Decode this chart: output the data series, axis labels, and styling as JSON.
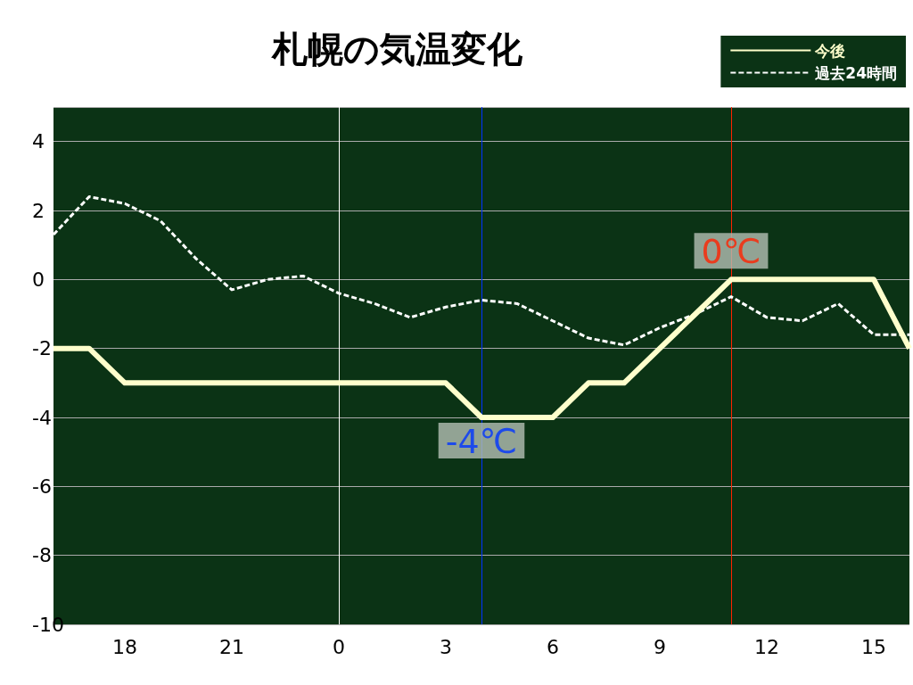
{
  "chart_data": {
    "type": "line",
    "title": "札幌の気温変化",
    "x": [
      "--01-01T16:00",
      "--01-01T17:00",
      "--01-01T18:00",
      "--01-01T19:00",
      "--01-01T20:00",
      "--01-01T21:00",
      "--01-01T22:00",
      "--01-01T23:00",
      "--01-02T00:00",
      "--01-02T01:00",
      "--01-02T02:00",
      "--01-02T03:00",
      "--01-02T04:00",
      "--01-02T05:00",
      "--01-02T06:00",
      "--01-02T07:00",
      "--01-02T08:00",
      "--01-02T09:00",
      "--01-02T10:00",
      "--01-02T11:00",
      "--01-02T12:00",
      "--01-02T13:00",
      "--01-02T14:00",
      "--01-02T15:00",
      "--01-02T16:00"
    ],
    "series": [
      {
        "name": "今後",
        "color": "#ffffcc",
        "line_style": "solid",
        "values": [
          -2,
          -2,
          -3,
          -3,
          -3,
          -3,
          -3,
          -3,
          -3,
          -3,
          -3,
          -3,
          -4,
          -4,
          -4,
          -3,
          -3,
          -2,
          -1,
          0,
          0,
          0,
          0,
          0,
          -2
        ]
      },
      {
        "name": "過去24時間",
        "color": "#ffffff",
        "line_style": "dashed",
        "values": [
          1.3,
          2.4,
          2.2,
          1.7,
          0.6,
          -0.3,
          0,
          0.1,
          -0.4,
          -0.7,
          -1.1,
          -0.8,
          -0.6,
          -0.7,
          -1.2,
          -1.7,
          -1.9,
          -1.4,
          -1.0,
          -0.5,
          -1.1,
          -1.2,
          -0.7,
          -1.6,
          -1.6
        ]
      }
    ],
    "xlim": [
      "--01-01T16:00",
      "--01-02T16:00"
    ],
    "xticks": [
      {
        "value": "--01-01T18:00",
        "label": "18"
      },
      {
        "value": "--01-01T21:00",
        "label": "21"
      },
      {
        "value": "--01-02T00:00",
        "label": "0"
      },
      {
        "value": "--01-02T03:00",
        "label": "3"
      },
      {
        "value": "--01-02T06:00",
        "label": "6"
      },
      {
        "value": "--01-02T09:00",
        "label": "9"
      },
      {
        "value": "--01-02T12:00",
        "label": "12"
      },
      {
        "value": "--01-02T15:00",
        "label": "15"
      }
    ],
    "ylim": [
      -10,
      5
    ],
    "yticks": [
      -10,
      -8,
      -6,
      -4,
      -2,
      0,
      2,
      4
    ],
    "ref_lines": [
      {
        "axis": "x",
        "value": "--01-02T00:00",
        "color": "#ffffff"
      },
      {
        "axis": "x",
        "value": "--01-02T04:00",
        "color": "#0033ff"
      },
      {
        "axis": "x",
        "value": "--01-02T11:00",
        "color": "#ff2200"
      }
    ],
    "annotations": [
      {
        "text": "-4℃",
        "x": "--01-02T04:00",
        "y": -4
      },
      {
        "text": "0℃",
        "x": "--01-02T11:00",
        "y": 0
      }
    ],
    "grid": "y",
    "legend": "top right",
    "marker": "none"
  }
}
